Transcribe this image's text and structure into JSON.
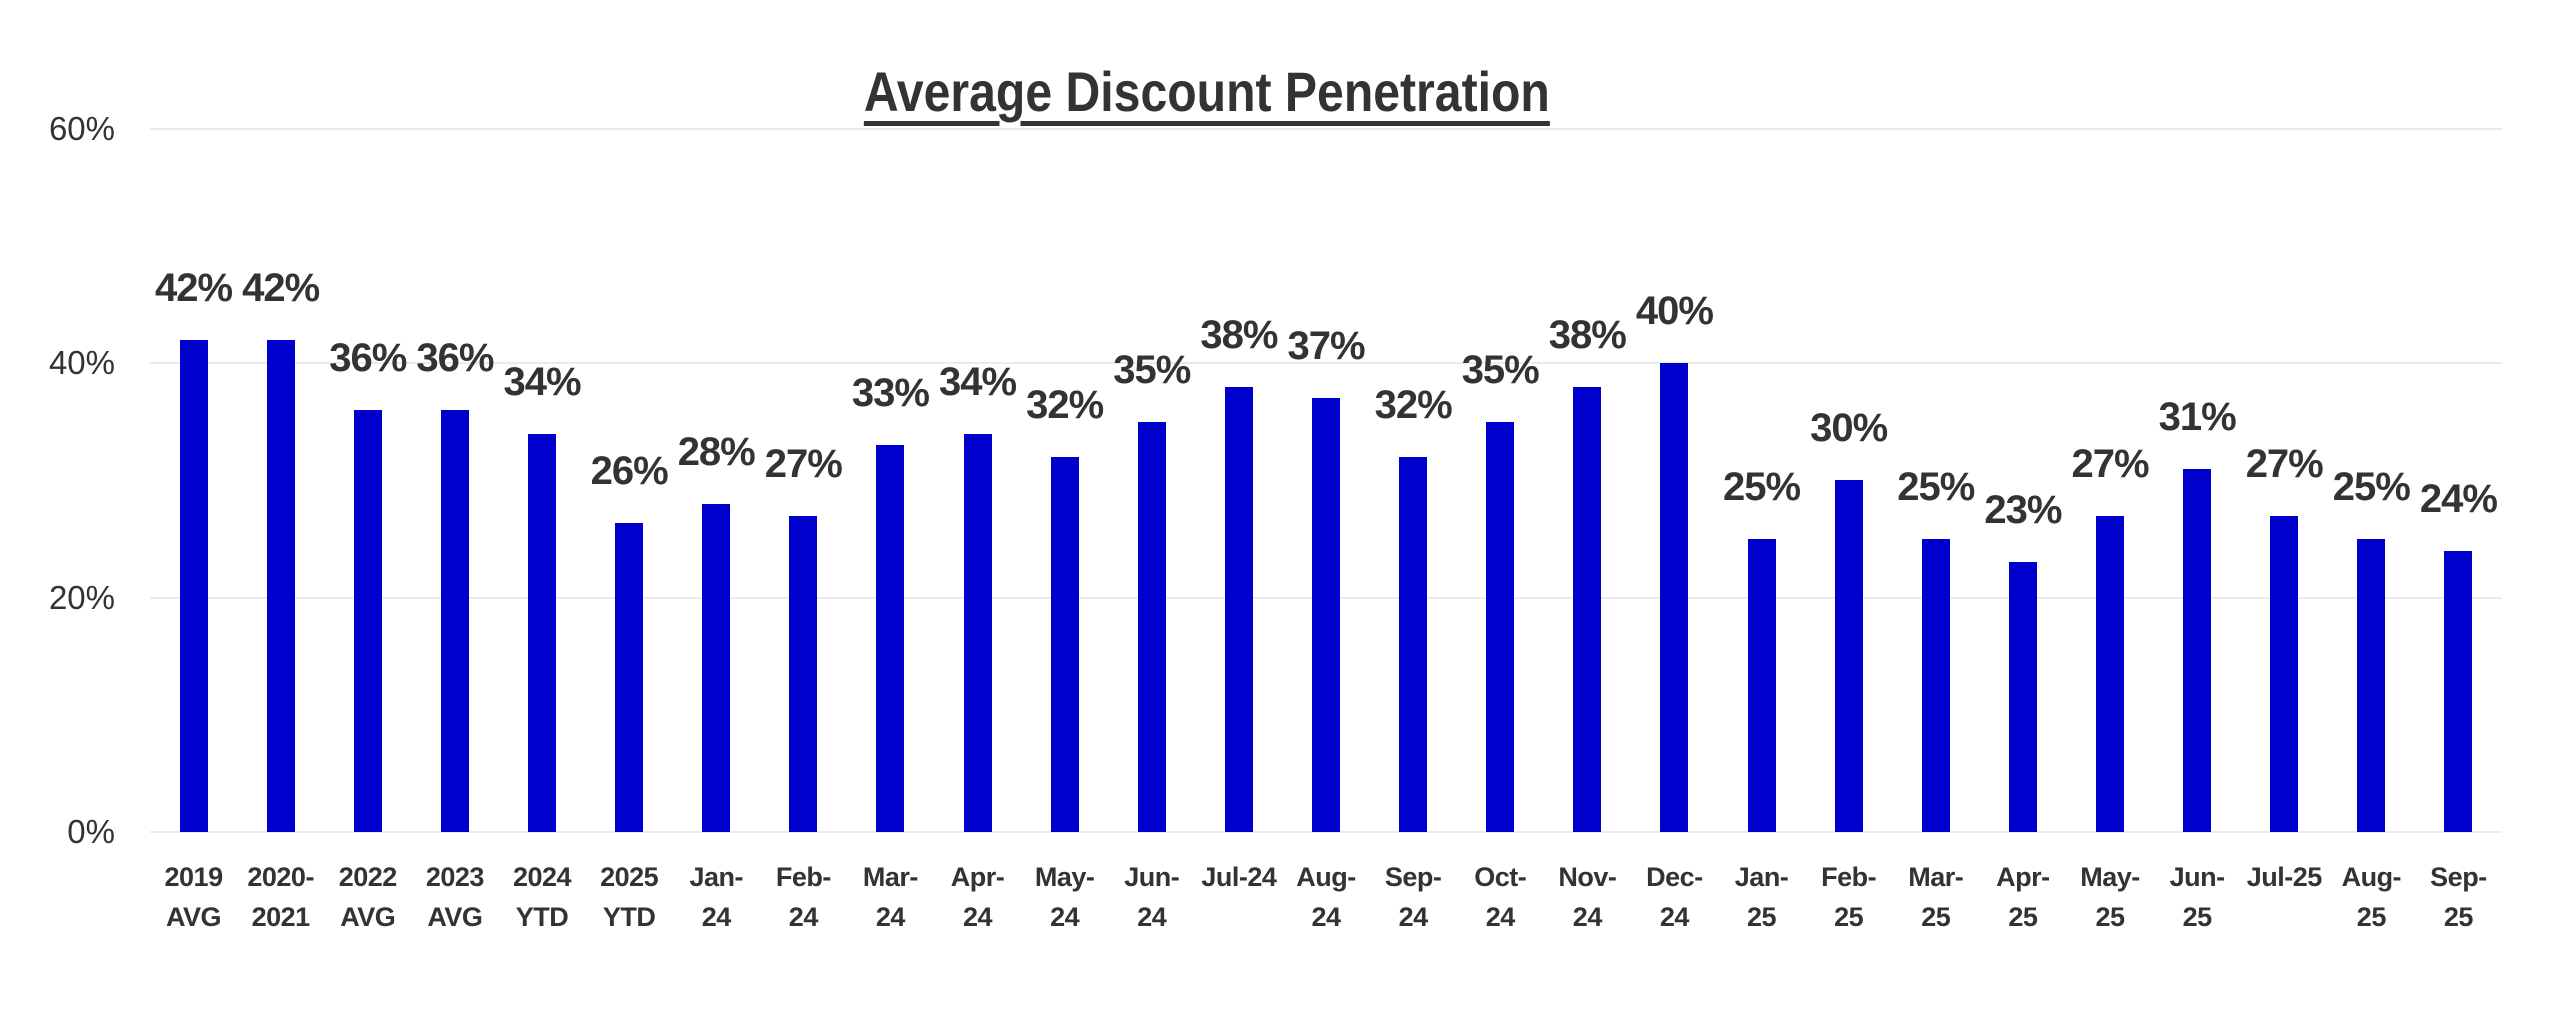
{
  "chart_data": {
    "type": "bar",
    "title": "Average Discount Penetration",
    "xlabel": "",
    "ylabel": "",
    "ylim": [
      0,
      60
    ],
    "yticks": [
      "0%",
      "20%",
      "40%",
      "60%"
    ],
    "ytick_values": [
      0,
      20,
      40,
      60
    ],
    "grid": true,
    "legend": null,
    "bar_color": "#0000cc",
    "categories": [
      "2019 AVG",
      "2020-2021",
      "2022 AVG",
      "2023 AVG",
      "2024 YTD",
      "2025 YTD",
      "Jan-24",
      "Feb-24",
      "Mar-24",
      "Apr-24",
      "May-24",
      "Jun-24",
      "Jul-24",
      "Aug-24",
      "Sep-24",
      "Oct-24",
      "Nov-24",
      "Dec-24",
      "Jan-25",
      "Feb-25",
      "Mar-25",
      "Apr-25",
      "May-25",
      "Jun-25",
      "Jul-25",
      "Aug-25",
      "Sep-25"
    ],
    "category_lines": [
      "2019\nAVG",
      "2020-\n2021",
      "2022\nAVG",
      "2023\nAVG",
      "2024\nYTD",
      "2025\nYTD",
      "Jan-\n24",
      "Feb-\n24",
      "Mar-\n24",
      "Apr-\n24",
      "May-\n24",
      "Jun-\n24",
      "Jul-24",
      "Aug-\n24",
      "Sep-\n24",
      "Oct-\n24",
      "Nov-\n24",
      "Dec-\n24",
      "Jan-\n25",
      "Feb-\n25",
      "Mar-\n25",
      "Apr-\n25",
      "May-\n25",
      "Jun-\n25",
      "Jul-25",
      "Aug-\n25",
      "Sep-\n25"
    ],
    "values": [
      42,
      42,
      36,
      36,
      34,
      26.4,
      28,
      27,
      33,
      34,
      32,
      35,
      38,
      37,
      32,
      35,
      38,
      40,
      25,
      30,
      25,
      23,
      27,
      31,
      27,
      25,
      24
    ],
    "data_labels": [
      "42%",
      "42%",
      "36%",
      "36%",
      "34%",
      "26%",
      "28%",
      "27%",
      "33%",
      "34%",
      "32%",
      "35%",
      "38%",
      "37%",
      "32%",
      "35%",
      "38%",
      "40%",
      "25%",
      "30%",
      "25%",
      "23%",
      "27%",
      "31%",
      "27%",
      "25%",
      "24%"
    ]
  }
}
